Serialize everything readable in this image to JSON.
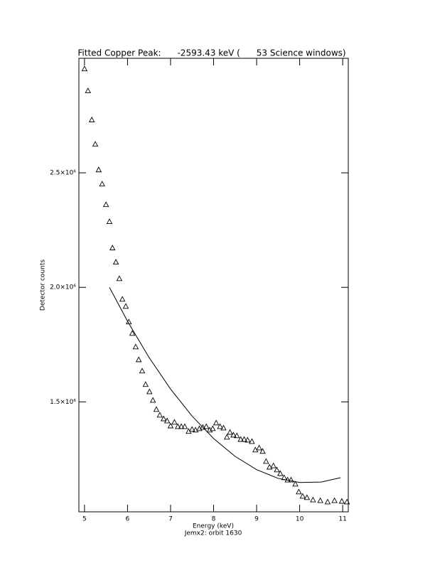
{
  "chart_data": {
    "type": "scatter",
    "title": "Fitted Copper Peak:      -2593.43 keV (      53 Science windows)",
    "xlabel": "Energy (keV)",
    "subtitle": "Jemx2: orbit 1630",
    "ylabel": "Detector counts",
    "xlim": [
      4.87,
      11.13
    ],
    "ylim": [
      1020000,
      3000000
    ],
    "xticks": [
      5,
      6,
      7,
      8,
      9,
      10,
      11
    ],
    "yticks": [
      {
        "value": 1500000,
        "label": "1.5×10⁶"
      },
      {
        "value": 2000000,
        "label": "2.0×10⁶"
      },
      {
        "value": 2500000,
        "label": "2.5×10⁶"
      }
    ],
    "color": "#000000",
    "series": [
      {
        "marker": "triangle",
        "x": [
          5.0,
          5.08,
          5.17,
          5.25,
          5.33,
          5.41,
          5.5,
          5.58,
          5.65,
          5.73,
          5.81,
          5.88,
          5.96,
          6.03,
          6.11,
          6.19,
          6.26,
          6.34,
          6.42,
          6.51,
          6.59,
          6.67,
          6.75,
          6.84,
          6.92,
          7.0,
          7.09,
          7.17,
          7.25,
          7.33,
          7.42,
          7.5,
          7.58,
          7.67,
          7.75,
          7.83,
          7.91,
          7.98,
          8.06,
          8.15,
          8.23,
          8.31,
          8.38,
          8.46,
          8.54,
          8.63,
          8.71,
          8.79,
          8.89,
          8.97,
          9.06,
          9.14,
          9.22,
          9.3,
          9.39,
          9.47,
          9.55,
          9.64,
          9.72,
          9.8,
          9.9,
          9.98,
          10.07,
          10.17,
          10.31,
          10.48,
          10.65,
          10.81,
          10.98,
          11.1
        ],
        "values": [
          2953000,
          2857000,
          2730000,
          2624000,
          2512000,
          2450000,
          2360000,
          2286000,
          2171000,
          2109000,
          2037000,
          1947000,
          1916000,
          1848000,
          1798000,
          1739000,
          1683000,
          1634000,
          1575000,
          1543000,
          1506000,
          1466000,
          1441000,
          1425000,
          1416000,
          1394000,
          1410000,
          1391000,
          1391000,
          1391000,
          1370000,
          1379000,
          1376000,
          1382000,
          1388000,
          1391000,
          1376000,
          1382000,
          1407000,
          1391000,
          1385000,
          1345000,
          1366000,
          1354000,
          1351000,
          1335000,
          1335000,
          1332000,
          1326000,
          1289000,
          1298000,
          1283000,
          1239000,
          1214000,
          1220000,
          1202000,
          1186000,
          1168000,
          1158000,
          1158000,
          1140000,
          1106000,
          1087000,
          1081000,
          1071000,
          1068000,
          1062000,
          1068000,
          1065000,
          1062000
        ]
      },
      {
        "marker": "line",
        "x": [
          5.58,
          6.0,
          6.5,
          7.0,
          7.5,
          8.0,
          8.5,
          9.0,
          9.5,
          10.0,
          10.5,
          10.95
        ],
        "values": [
          2000000,
          1852000,
          1694000,
          1556000,
          1438000,
          1340000,
          1262000,
          1204000,
          1166000,
          1148000,
          1150000,
          1169000
        ]
      }
    ]
  }
}
